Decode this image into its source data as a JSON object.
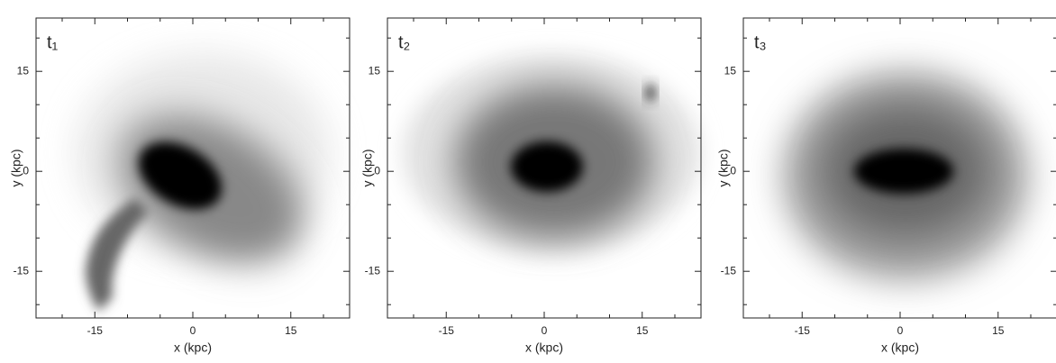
{
  "chart_data": [
    {
      "type": "image",
      "label": "t₁",
      "xlabel": "x (kpc)",
      "ylabel": "y (kpc)",
      "xlim": [
        -24,
        24
      ],
      "ylim": [
        -22,
        23
      ],
      "xticks": [
        -15,
        0,
        15
      ],
      "yticks": [
        -15,
        0,
        15
      ],
      "xminor": [
        -20,
        -10,
        -5,
        5,
        10,
        20
      ],
      "yminor": [
        -20,
        -10,
        -5,
        5,
        10,
        20
      ]
    },
    {
      "type": "image",
      "label": "t₂",
      "xlabel": "x (kpc)",
      "ylabel": "y (kpc)",
      "xlim": [
        -24,
        24
      ],
      "ylim": [
        -22,
        23
      ],
      "xticks": [
        -15,
        0,
        15
      ],
      "yticks": [
        -15,
        0,
        15
      ],
      "xminor": [
        -20,
        -10,
        -5,
        5,
        10,
        20
      ],
      "yminor": [
        -20,
        -10,
        -5,
        5,
        10,
        20
      ]
    },
    {
      "type": "image",
      "label": "t₃",
      "xlabel": "x (kpc)",
      "ylabel": "y (kpc)",
      "xlim": [
        -24,
        24
      ],
      "ylim": [
        -22,
        23
      ],
      "xticks": [
        -15,
        0,
        15
      ],
      "yticks": [
        -15,
        0,
        15
      ],
      "xminor": [
        -20,
        -10,
        -5,
        5,
        10,
        20
      ],
      "yminor": [
        -20,
        -10,
        -5,
        5,
        10,
        20
      ]
    }
  ]
}
